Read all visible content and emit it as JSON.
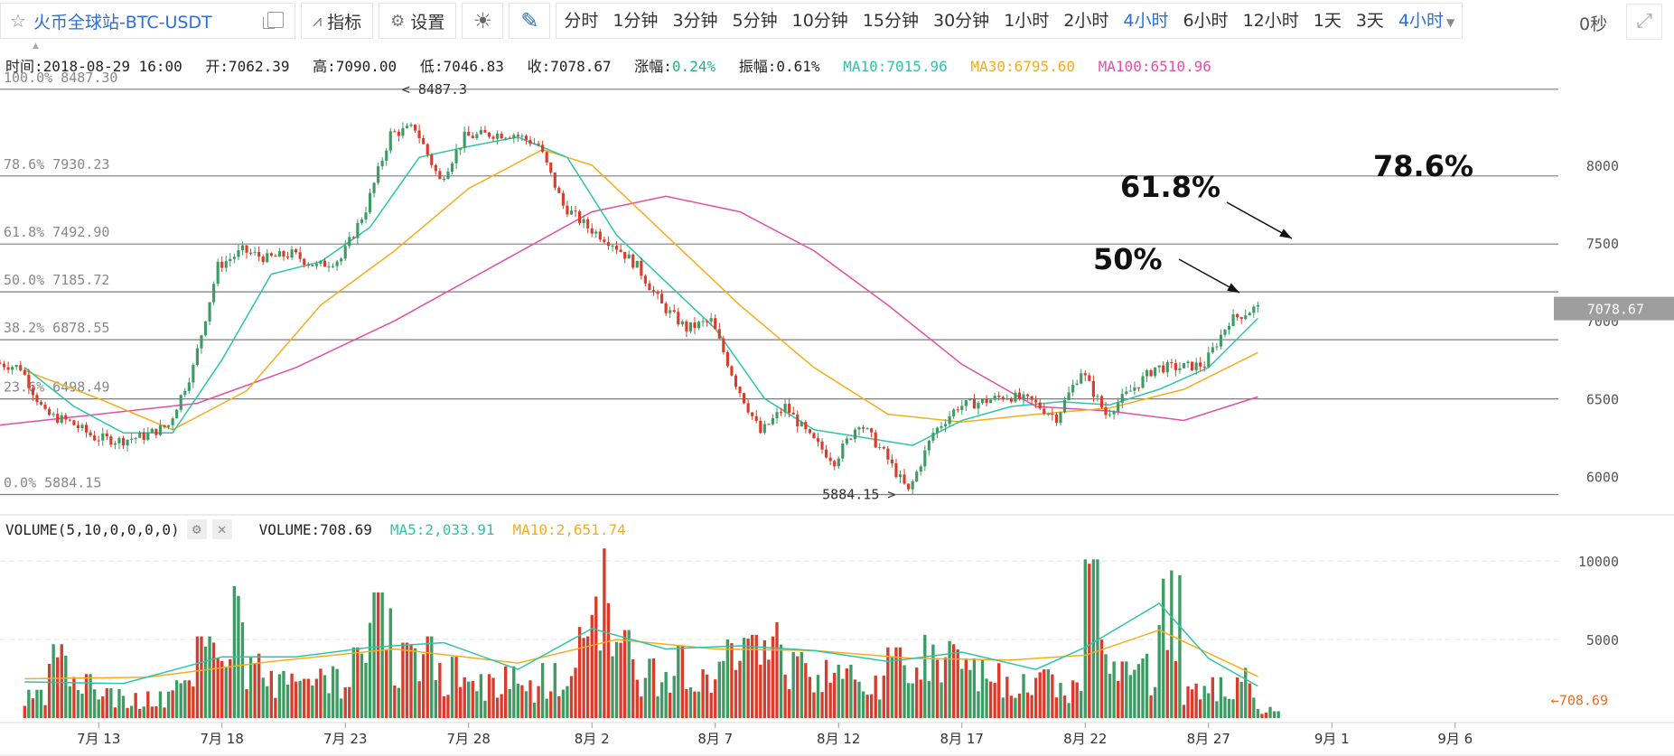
{
  "toolbar": {
    "symbol": "火币全球站-BTC-USDT",
    "indicators_label": "指标",
    "settings_label": "设置",
    "periods": [
      "分时",
      "1分钟",
      "3分钟",
      "5分钟",
      "10分钟",
      "15分钟",
      "30分钟",
      "1小时",
      "2小时",
      "4小时",
      "6小时",
      "12小时",
      "1天",
      "3天"
    ],
    "active_period": "4小时",
    "period_select": "4小时",
    "countdown": "0秒"
  },
  "info": {
    "time": "时间:2018-08-29 16:00",
    "open": "开:7062.39",
    "high": "高:7090.00",
    "low": "低:7046.83",
    "close": "收:7078.67",
    "change_label": "涨幅:",
    "change_value": "0.24%",
    "amplitude": "振幅:0.61%",
    "ma10": "MA10:7015.96",
    "ma30": "MA30:6795.60",
    "ma100": "MA100:6510.96"
  },
  "volume_info": {
    "label": "VOLUME(5,10,0,0,0,0)",
    "volume": "VOLUME:708.69",
    "ma5": "MA5:2,033.91",
    "ma10": "MA10:2,651.74"
  },
  "colors": {
    "up": "#3d9c64",
    "down": "#d93c2a",
    "ma10": "#2dc5a8",
    "ma30": "#f5ad1b",
    "ma100": "#e24fa6",
    "accent": "#2a6fd8"
  },
  "chart_data": {
    "type": "candlestick",
    "x_tick_labels": [
      "7月 13",
      "7月 18",
      "7月 23",
      "7月 28",
      "8月 2",
      "8月 7",
      "8月 12",
      "8月 17",
      "8月 22",
      "8月 27",
      "9月 1",
      "9月 6"
    ],
    "x_tick_dates": [
      "2018-07-13",
      "2018-07-18",
      "2018-07-23",
      "2018-07-28",
      "2018-08-02",
      "2018-08-07",
      "2018-08-12",
      "2018-08-17",
      "2018-08-22",
      "2018-08-27",
      "2018-09-01",
      "2018-09-06"
    ],
    "x_range": [
      "2018-07-09",
      "2018-09-10"
    ],
    "y_ticks": [
      6000,
      6500,
      7000,
      7500,
      8000
    ],
    "y_range": [
      5800,
      8550
    ],
    "last_price": "7078.67",
    "fib_levels": [
      {
        "label": "100.0% 8487.30",
        "value": 8487.3
      },
      {
        "label": "78.6% 7930.23",
        "value": 7930.23
      },
      {
        "label": "61.8% 7492.90",
        "value": 7492.9
      },
      {
        "label": "50.0% 7185.72",
        "value": 7185.72
      },
      {
        "label": "38.2% 6878.55",
        "value": 6878.55
      },
      {
        "label": "23.6% 6498.49",
        "value": 6498.49
      },
      {
        "label": "0.0% 5884.15",
        "value": 5884.15
      }
    ],
    "high_marker": "8487.3",
    "low_marker": "5884.15",
    "annotations": [
      "78.6%",
      "61.8%",
      "50%"
    ],
    "price_path": [
      [
        "2018-07-09",
        6730
      ],
      [
        "2018-07-10",
        6700
      ],
      [
        "2018-07-11",
        6400
      ],
      [
        "2018-07-12",
        6350
      ],
      [
        "2018-07-13",
        6250
      ],
      [
        "2018-07-14",
        6230
      ],
      [
        "2018-07-15",
        6260
      ],
      [
        "2018-07-16",
        6330
      ],
      [
        "2018-07-17",
        6700
      ],
      [
        "2018-07-18",
        7350
      ],
      [
        "2018-07-19",
        7450
      ],
      [
        "2018-07-20",
        7400
      ],
      [
        "2018-07-21",
        7430
      ],
      [
        "2018-07-22",
        7350
      ],
      [
        "2018-07-23",
        7400
      ],
      [
        "2018-07-24",
        7720
      ],
      [
        "2018-07-25",
        8200
      ],
      [
        "2018-07-26",
        8240
      ],
      [
        "2018-07-27",
        7900
      ],
      [
        "2018-07-28",
        8180
      ],
      [
        "2018-07-29",
        8200
      ],
      [
        "2018-07-30",
        8200
      ],
      [
        "2018-07-31",
        8130
      ],
      [
        "2018-08-01",
        7740
      ],
      [
        "2018-08-02",
        7600
      ],
      [
        "2018-08-03",
        7500
      ],
      [
        "2018-08-04",
        7350
      ],
      [
        "2018-08-05",
        7100
      ],
      [
        "2018-08-06",
        6950
      ],
      [
        "2018-08-07",
        7000
      ],
      [
        "2018-08-08",
        6600
      ],
      [
        "2018-08-09",
        6280
      ],
      [
        "2018-08-10",
        6450
      ],
      [
        "2018-08-11",
        6250
      ],
      [
        "2018-08-12",
        6100
      ],
      [
        "2018-08-13",
        6350
      ],
      [
        "2018-08-14",
        6150
      ],
      [
        "2018-08-15",
        5900
      ],
      [
        "2018-08-16",
        6280
      ],
      [
        "2018-08-17",
        6450
      ],
      [
        "2018-08-18",
        6480
      ],
      [
        "2018-08-19",
        6520
      ],
      [
        "2018-08-20",
        6480
      ],
      [
        "2018-08-21",
        6380
      ],
      [
        "2018-08-22",
        6680
      ],
      [
        "2018-08-23",
        6400
      ],
      [
        "2018-08-24",
        6550
      ],
      [
        "2018-08-25",
        6700
      ],
      [
        "2018-08-26",
        6700
      ],
      [
        "2018-08-27",
        6720
      ],
      [
        "2018-08-28",
        7000
      ],
      [
        "2018-08-29",
        7078.67
      ]
    ],
    "ma10_path": [
      [
        "2018-07-10",
        6700
      ],
      [
        "2018-07-12",
        6450
      ],
      [
        "2018-07-14",
        6280
      ],
      [
        "2018-07-16",
        6280
      ],
      [
        "2018-07-18",
        6750
      ],
      [
        "2018-07-20",
        7300
      ],
      [
        "2018-07-22",
        7380
      ],
      [
        "2018-07-24",
        7600
      ],
      [
        "2018-07-26",
        8050
      ],
      [
        "2018-07-28",
        8120
      ],
      [
        "2018-07-30",
        8180
      ],
      [
        "2018-08-01",
        8050
      ],
      [
        "2018-08-03",
        7550
      ],
      [
        "2018-08-05",
        7250
      ],
      [
        "2018-08-07",
        6950
      ],
      [
        "2018-08-09",
        6500
      ],
      [
        "2018-08-11",
        6300
      ],
      [
        "2018-08-13",
        6250
      ],
      [
        "2018-08-15",
        6200
      ],
      [
        "2018-08-17",
        6360
      ],
      [
        "2018-08-19",
        6450
      ],
      [
        "2018-08-21",
        6480
      ],
      [
        "2018-08-23",
        6460
      ],
      [
        "2018-08-25",
        6560
      ],
      [
        "2018-08-27",
        6700
      ],
      [
        "2018-08-29",
        7016
      ]
    ],
    "ma30_path": [
      [
        "2018-07-10",
        6680
      ],
      [
        "2018-07-13",
        6500
      ],
      [
        "2018-07-16",
        6300
      ],
      [
        "2018-07-19",
        6550
      ],
      [
        "2018-07-22",
        7100
      ],
      [
        "2018-07-25",
        7450
      ],
      [
        "2018-07-28",
        7850
      ],
      [
        "2018-07-31",
        8100
      ],
      [
        "2018-08-02",
        8000
      ],
      [
        "2018-08-05",
        7550
      ],
      [
        "2018-08-08",
        7100
      ],
      [
        "2018-08-11",
        6700
      ],
      [
        "2018-08-14",
        6400
      ],
      [
        "2018-08-17",
        6350
      ],
      [
        "2018-08-20",
        6400
      ],
      [
        "2018-08-23",
        6440
      ],
      [
        "2018-08-26",
        6560
      ],
      [
        "2018-08-29",
        6796
      ]
    ],
    "ma100_path": [
      [
        "2018-07-09",
        6330
      ],
      [
        "2018-07-13",
        6400
      ],
      [
        "2018-07-17",
        6470
      ],
      [
        "2018-07-21",
        6700
      ],
      [
        "2018-07-25",
        7000
      ],
      [
        "2018-07-29",
        7350
      ],
      [
        "2018-08-02",
        7700
      ],
      [
        "2018-08-05",
        7800
      ],
      [
        "2018-08-08",
        7700
      ],
      [
        "2018-08-11",
        7450
      ],
      [
        "2018-08-14",
        7100
      ],
      [
        "2018-08-17",
        6720
      ],
      [
        "2018-08-20",
        6450
      ],
      [
        "2018-08-23",
        6420
      ],
      [
        "2018-08-26",
        6360
      ],
      [
        "2018-08-29",
        6511
      ]
    ],
    "volume_y_ticks": [
      5000,
      10000
    ],
    "volume_y_range": [
      0,
      11500
    ],
    "last_volume": "708.69",
    "volume_bars": [
      [
        "2018-07-10",
        1800,
        "up"
      ],
      [
        "2018-07-11",
        4700,
        "down"
      ],
      [
        "2018-07-12",
        2800,
        "down"
      ],
      [
        "2018-07-13",
        1900,
        "up"
      ],
      [
        "2018-07-14",
        1600,
        "down"
      ],
      [
        "2018-07-15",
        1700,
        "up"
      ],
      [
        "2018-07-16",
        2400,
        "up"
      ],
      [
        "2018-07-17",
        5200,
        "up"
      ],
      [
        "2018-07-18",
        8400,
        "up"
      ],
      [
        "2018-07-19",
        4100,
        "down"
      ],
      [
        "2018-07-20",
        3000,
        "up"
      ],
      [
        "2018-07-21",
        2500,
        "down"
      ],
      [
        "2018-07-22",
        3300,
        "up"
      ],
      [
        "2018-07-23",
        4500,
        "down"
      ],
      [
        "2018-07-24",
        8000,
        "up"
      ],
      [
        "2018-07-25",
        4800,
        "down"
      ],
      [
        "2018-07-26",
        5200,
        "up"
      ],
      [
        "2018-07-27",
        3900,
        "down"
      ],
      [
        "2018-07-28",
        2800,
        "up"
      ],
      [
        "2018-07-29",
        3300,
        "down"
      ],
      [
        "2018-07-30",
        2400,
        "down"
      ],
      [
        "2018-07-31",
        3500,
        "up"
      ],
      [
        "2018-08-01",
        5800,
        "down"
      ],
      [
        "2018-08-02",
        10800,
        "down"
      ],
      [
        "2018-08-03",
        5600,
        "up"
      ],
      [
        "2018-08-04",
        3800,
        "down"
      ],
      [
        "2018-08-05",
        4600,
        "up"
      ],
      [
        "2018-08-06",
        3100,
        "down"
      ],
      [
        "2018-08-07",
        5000,
        "up"
      ],
      [
        "2018-08-08",
        5300,
        "down"
      ],
      [
        "2018-08-09",
        6100,
        "down"
      ],
      [
        "2018-08-10",
        4200,
        "up"
      ],
      [
        "2018-08-11",
        3700,
        "down"
      ],
      [
        "2018-08-12",
        3400,
        "up"
      ],
      [
        "2018-08-13",
        2700,
        "down"
      ],
      [
        "2018-08-14",
        4500,
        "down"
      ],
      [
        "2018-08-15",
        5300,
        "up"
      ],
      [
        "2018-08-16",
        4900,
        "up"
      ],
      [
        "2018-08-17",
        3800,
        "up"
      ],
      [
        "2018-08-18",
        3500,
        "down"
      ],
      [
        "2018-08-19",
        2800,
        "up"
      ],
      [
        "2018-08-20",
        3100,
        "up"
      ],
      [
        "2018-08-21",
        2400,
        "down"
      ],
      [
        "2018-08-22",
        10100,
        "up"
      ],
      [
        "2018-08-23",
        3600,
        "down"
      ],
      [
        "2018-08-24",
        4100,
        "up"
      ],
      [
        "2018-08-25",
        9400,
        "up"
      ],
      [
        "2018-08-26",
        2200,
        "down"
      ],
      [
        "2018-08-27",
        2600,
        "up"
      ],
      [
        "2018-08-28",
        3200,
        "up"
      ],
      [
        "2018-08-29",
        709,
        "up"
      ]
    ],
    "volume_ma5_path": [
      [
        "2018-07-10",
        2300
      ],
      [
        "2018-07-14",
        2200
      ],
      [
        "2018-07-18",
        3900
      ],
      [
        "2018-07-21",
        3900
      ],
      [
        "2018-07-24",
        4500
      ],
      [
        "2018-07-27",
        4800
      ],
      [
        "2018-07-30",
        3100
      ],
      [
        "2018-08-02",
        5700
      ],
      [
        "2018-08-05",
        4400
      ],
      [
        "2018-08-08",
        4600
      ],
      [
        "2018-08-11",
        4300
      ],
      [
        "2018-08-14",
        3600
      ],
      [
        "2018-08-17",
        4200
      ],
      [
        "2018-08-20",
        3100
      ],
      [
        "2018-08-22",
        4500
      ],
      [
        "2018-08-25",
        7300
      ],
      [
        "2018-08-27",
        3800
      ],
      [
        "2018-08-29",
        2034
      ]
    ],
    "volume_ma10_path": [
      [
        "2018-07-10",
        2500
      ],
      [
        "2018-07-15",
        2600
      ],
      [
        "2018-07-20",
        3600
      ],
      [
        "2018-07-25",
        4400
      ],
      [
        "2018-07-30",
        3500
      ],
      [
        "2018-08-03",
        5000
      ],
      [
        "2018-08-07",
        4400
      ],
      [
        "2018-08-11",
        4300
      ],
      [
        "2018-08-15",
        3800
      ],
      [
        "2018-08-19",
        3700
      ],
      [
        "2018-08-22",
        4000
      ],
      [
        "2018-08-25",
        5600
      ],
      [
        "2018-08-29",
        2652
      ]
    ]
  }
}
